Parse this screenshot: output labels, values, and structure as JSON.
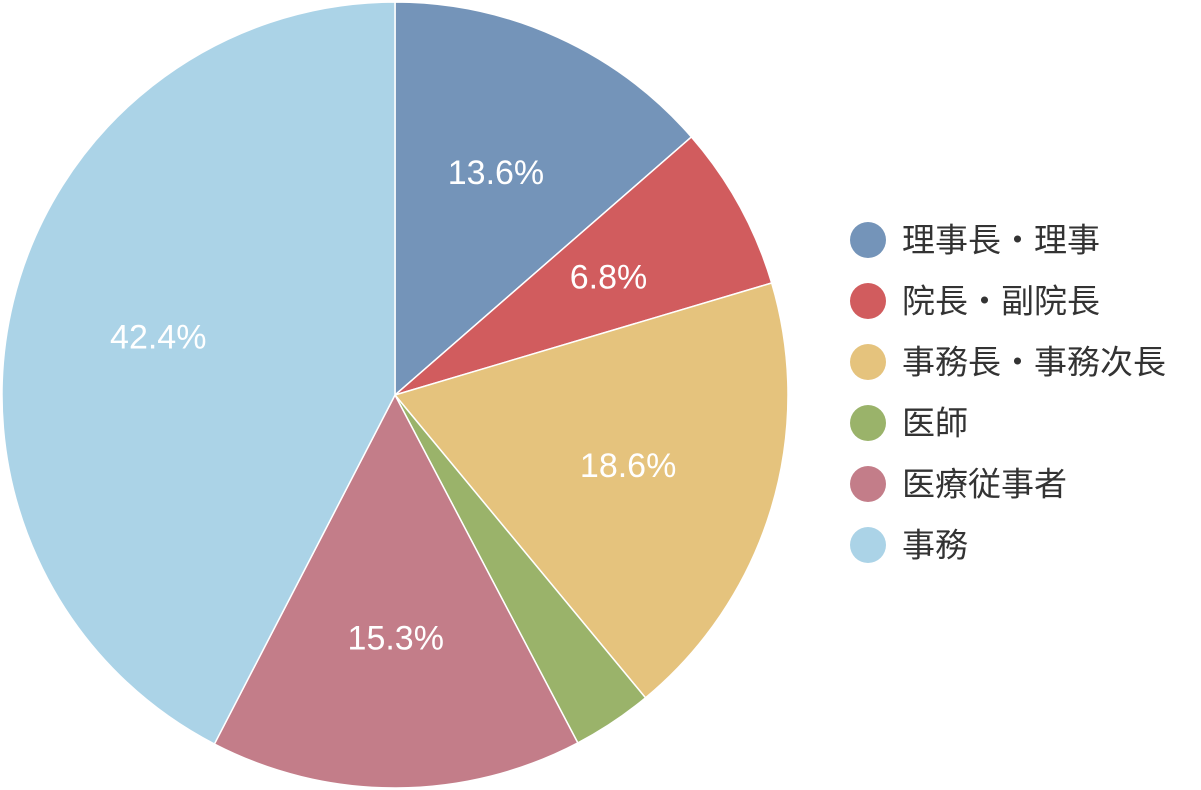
{
  "chart_data": {
    "type": "pie",
    "start_angle": "12 o'clock",
    "direction": "clockwise",
    "legend_position": "right",
    "slices": [
      {
        "label": "理事長・理事",
        "value": 13.6,
        "value_label": "13.6%",
        "color": "#7494b9"
      },
      {
        "label": "院長・副院長",
        "value": 6.8,
        "value_label": "6.8%",
        "color": "#d15c5e"
      },
      {
        "label": "事務長・事務次長",
        "value": 18.6,
        "value_label": "18.6%",
        "color": "#e5c37d"
      },
      {
        "label": "医師",
        "value": 3.3,
        "value_label": "",
        "color": "#9ab36a"
      },
      {
        "label": "医療従事者",
        "value": 15.3,
        "value_label": "15.3%",
        "color": "#c37d89"
      },
      {
        "label": "事務",
        "value": 42.4,
        "value_label": "42.4%",
        "color": "#abd3e7"
      }
    ]
  }
}
